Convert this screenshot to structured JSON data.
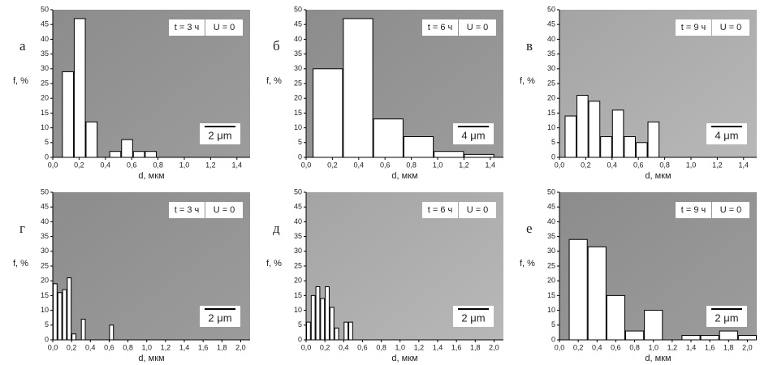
{
  "chart_data": [
    {
      "type": "histogram",
      "label": "а",
      "annotations": [
        "t = 3 ч",
        "U = 0"
      ],
      "scale_bar": "2 μm",
      "xlabel": "d, мкм",
      "ylabel": "f, %",
      "bins": [
        0.07,
        0.16,
        0.25,
        0.34,
        0.43,
        0.52,
        0.61,
        0.7,
        0.79,
        0.88
      ],
      "values": [
        29,
        47,
        12,
        0,
        2,
        6,
        2,
        2,
        0
      ],
      "color": "#ffffff",
      "xlim": [
        0,
        1.5
      ],
      "xticks": [
        {
          "value": 0,
          "label": "0,0"
        },
        {
          "value": 0.2,
          "label": "0,2"
        },
        {
          "value": 0.4,
          "label": "0,4"
        },
        {
          "value": 0.6,
          "label": "0,6"
        },
        {
          "value": 0.8,
          "label": "0,8"
        },
        {
          "value": 1.0,
          "label": "1,0"
        },
        {
          "value": 1.2,
          "label": "1,2"
        },
        {
          "value": 1.4,
          "label": "1,4"
        }
      ],
      "ylim": [
        0,
        50
      ],
      "yticks": [
        0,
        5,
        10,
        15,
        20,
        25,
        30,
        35,
        40,
        45,
        50
      ]
    },
    {
      "type": "histogram",
      "label": "б",
      "annotations": [
        "t = 6 ч",
        "U = 0"
      ],
      "scale_bar": "4 μm",
      "xlabel": "d, мкм",
      "ylabel": "f, %",
      "bins": [
        0.05,
        0.28,
        0.51,
        0.74,
        0.97,
        1.2,
        1.43
      ],
      "values": [
        30,
        47,
        13,
        7,
        2,
        1
      ],
      "color": "#ffffff",
      "xlim": [
        0,
        1.5
      ],
      "xticks": [
        {
          "value": 0,
          "label": "0,0"
        },
        {
          "value": 0.2,
          "label": "0,2"
        },
        {
          "value": 0.4,
          "label": "0,4"
        },
        {
          "value": 0.6,
          "label": "0,6"
        },
        {
          "value": 0.8,
          "label": "0,8"
        },
        {
          "value": 1.0,
          "label": "1,0"
        },
        {
          "value": 1.2,
          "label": "1,2"
        },
        {
          "value": 1.4,
          "label": "1,4"
        }
      ],
      "ylim": [
        0,
        50
      ],
      "yticks": [
        0,
        5,
        10,
        15,
        20,
        25,
        30,
        35,
        40,
        45,
        50
      ]
    },
    {
      "type": "histogram",
      "label": "в",
      "annotations": [
        "t = 9 ч",
        "U = 0"
      ],
      "scale_bar": "4 μm",
      "xlabel": "d, мкм",
      "ylabel": "f, %",
      "bins": [
        0.04,
        0.13,
        0.22,
        0.31,
        0.4,
        0.49,
        0.58,
        0.67,
        0.76
      ],
      "values": [
        14,
        21,
        19,
        7,
        16,
        7,
        5,
        12
      ],
      "color": "#ffffff",
      "xlim": [
        0,
        1.5
      ],
      "xticks": [
        {
          "value": 0,
          "label": "0,0"
        },
        {
          "value": 0.2,
          "label": "0,2"
        },
        {
          "value": 0.4,
          "label": "0,4"
        },
        {
          "value": 0.6,
          "label": "0,6"
        },
        {
          "value": 0.8,
          "label": "0,8"
        },
        {
          "value": 1.0,
          "label": "1,0"
        },
        {
          "value": 1.2,
          "label": "1,2"
        },
        {
          "value": 1.4,
          "label": "1,4"
        }
      ],
      "ylim": [
        0,
        50
      ],
      "yticks": [
        0,
        5,
        10,
        15,
        20,
        25,
        30,
        35,
        40,
        45,
        50
      ]
    },
    {
      "type": "histogram",
      "label": "г",
      "annotations": [
        "t = 3 ч",
        "U = 0"
      ],
      "scale_bar": "2 μm",
      "xlabel": "d, мкм",
      "ylabel": "f, %",
      "bins": [
        0,
        0.05,
        0.1,
        0.15,
        0.2,
        0.25,
        0.3,
        0.35,
        0.4,
        0.45,
        0.5,
        0.55,
        0.6,
        0.65
      ],
      "values": [
        19,
        16,
        17,
        21,
        2,
        0,
        7,
        0,
        0,
        0,
        0,
        0,
        5
      ],
      "color": "#ffffff",
      "xlim": [
        0,
        2.1
      ],
      "xticks": [
        {
          "value": 0,
          "label": "0,0"
        },
        {
          "value": 0.2,
          "label": "0,2"
        },
        {
          "value": 0.4,
          "label": "0,4"
        },
        {
          "value": 0.6,
          "label": "0,6"
        },
        {
          "value": 0.8,
          "label": "0,8"
        },
        {
          "value": 1.0,
          "label": "1,0"
        },
        {
          "value": 1.2,
          "label": "1,2"
        },
        {
          "value": 1.4,
          "label": "1,4"
        },
        {
          "value": 1.6,
          "label": "1,6"
        },
        {
          "value": 1.8,
          "label": "1,8"
        },
        {
          "value": 2.0,
          "label": "2,0"
        }
      ],
      "ylim": [
        0,
        50
      ],
      "yticks": [
        0,
        5,
        10,
        15,
        20,
        25,
        30,
        35,
        40,
        45,
        50
      ]
    },
    {
      "type": "histogram",
      "label": "д",
      "annotations": [
        "t = 6 ч",
        "U = 0"
      ],
      "scale_bar": "2 μm",
      "xlabel": "d, мкм",
      "ylabel": "f, %",
      "bins": [
        0,
        0.05,
        0.1,
        0.15,
        0.2,
        0.25,
        0.3,
        0.35,
        0.4,
        0.45,
        0.5
      ],
      "values": [
        6,
        15,
        18,
        14,
        18,
        11,
        4,
        0,
        6,
        6
      ],
      "color": "#ffffff",
      "xlim": [
        0,
        2.1
      ],
      "xticks": [
        {
          "value": 0,
          "label": "0,0"
        },
        {
          "value": 0.2,
          "label": "0,2"
        },
        {
          "value": 0.4,
          "label": "0,4"
        },
        {
          "value": 0.6,
          "label": "0,6"
        },
        {
          "value": 0.8,
          "label": "0,8"
        },
        {
          "value": 1.0,
          "label": "1,0"
        },
        {
          "value": 1.2,
          "label": "1,2"
        },
        {
          "value": 1.4,
          "label": "1,4"
        },
        {
          "value": 1.6,
          "label": "1,6"
        },
        {
          "value": 1.8,
          "label": "1,8"
        },
        {
          "value": 2.0,
          "label": "2,0"
        }
      ],
      "ylim": [
        0,
        50
      ],
      "yticks": [
        0,
        5,
        10,
        15,
        20,
        25,
        30,
        35,
        40,
        45,
        50
      ]
    },
    {
      "type": "histogram",
      "label": "е",
      "annotations": [
        "t = 9 ч",
        "U = 0"
      ],
      "scale_bar": "2 μm",
      "xlabel": "d, мкм",
      "ylabel": "f, %",
      "bins": [
        0.1,
        0.3,
        0.5,
        0.7,
        0.9,
        1.1,
        1.3,
        1.5,
        1.7,
        1.9,
        2.1
      ],
      "values": [
        34,
        31.5,
        15,
        3,
        10,
        0,
        1.5,
        1.5,
        3,
        1.5
      ],
      "color": "#ffffff",
      "xlim": [
        0,
        2.1
      ],
      "xticks": [
        {
          "value": 0,
          "label": "0,0"
        },
        {
          "value": 0.2,
          "label": "0,2"
        },
        {
          "value": 0.4,
          "label": "0,4"
        },
        {
          "value": 0.6,
          "label": "0,6"
        },
        {
          "value": 0.8,
          "label": "0,8"
        },
        {
          "value": 1.0,
          "label": "1,0"
        },
        {
          "value": 1.2,
          "label": "1,2"
        },
        {
          "value": 1.4,
          "label": "1,4"
        },
        {
          "value": 1.6,
          "label": "1,6"
        },
        {
          "value": 1.8,
          "label": "1,8"
        },
        {
          "value": 2.0,
          "label": "2,0"
        }
      ],
      "ylim": [
        0,
        50
      ],
      "yticks": [
        0,
        5,
        10,
        15,
        20,
        25,
        30,
        35,
        40,
        45,
        50
      ]
    }
  ]
}
